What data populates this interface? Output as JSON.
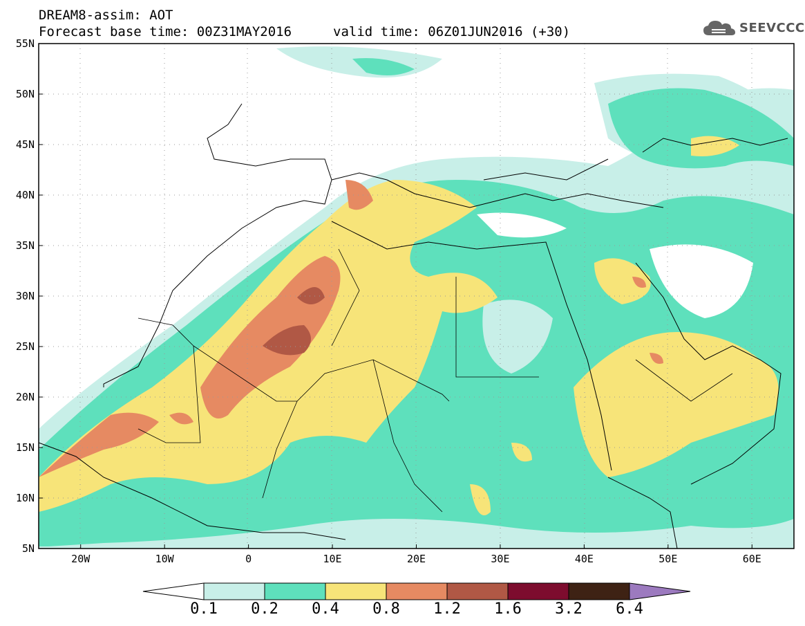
{
  "header": {
    "title": "DREAM8-assim: AOT",
    "base_time": "Forecast base time: 00Z31MAY2016",
    "valid_time": "valid time: 06Z01JUN2016 (+30)",
    "logo_text": "SEEVCCC",
    "logo_icon": "cloud-icon"
  },
  "map": {
    "lat_labels": [
      "55N",
      "50N",
      "45N",
      "40N",
      "35N",
      "30N",
      "25N",
      "20N",
      "15N",
      "10N",
      "5N"
    ],
    "lon_labels": [
      "20W",
      "10W",
      "0",
      "10E",
      "20E",
      "30E",
      "40E",
      "50E",
      "60E"
    ],
    "extent": {
      "lon": [
        -25,
        65
      ],
      "lat": [
        5,
        55
      ]
    }
  },
  "colorbar": {
    "labels": [
      "0.1",
      "0.2",
      "0.4",
      "0.8",
      "1.2",
      "1.6",
      "3.2",
      "6.4"
    ],
    "colors": [
      "#ffffff",
      "#c8efe8",
      "#5ee0bc",
      "#f7e479",
      "#e68a62",
      "#b05845",
      "#7d0c2e",
      "#3e2214",
      "#9c7abf"
    ]
  }
}
